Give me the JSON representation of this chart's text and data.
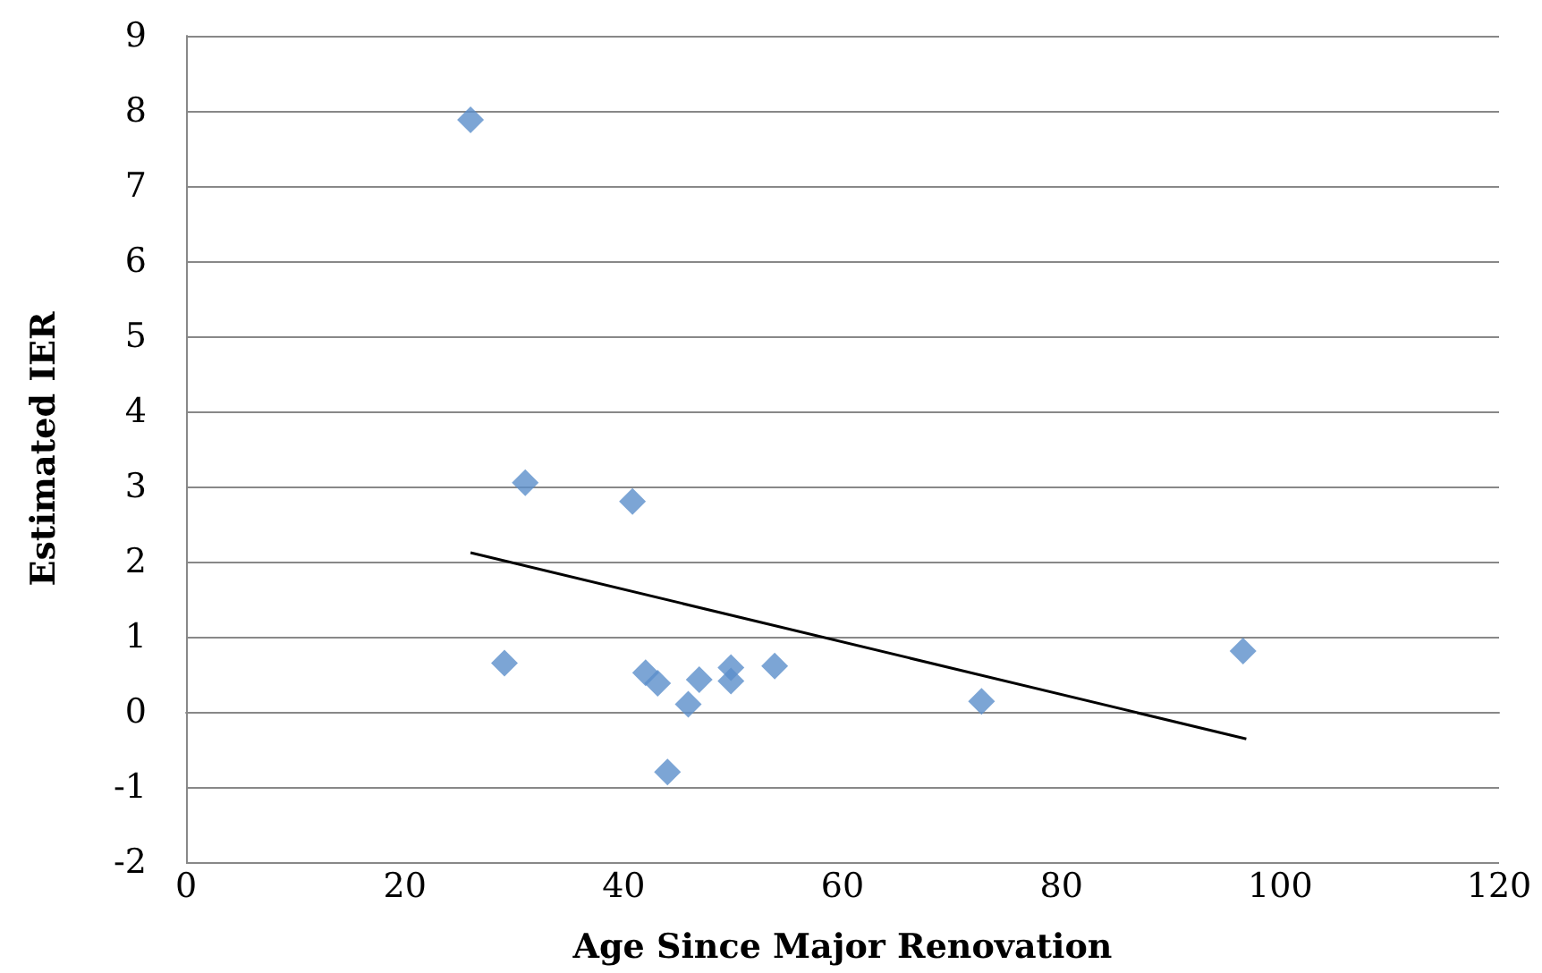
{
  "chart_data": {
    "type": "scatter",
    "xlabel": "Age Since Major Renovation",
    "ylabel": "Estimated IER",
    "xlim": [
      0,
      120
    ],
    "xticks": [
      0,
      20,
      40,
      60,
      80,
      100,
      120
    ],
    "ylim": [
      -2,
      9
    ],
    "yticks": [
      -2,
      -1,
      0,
      1,
      2,
      3,
      4,
      5,
      6,
      7,
      8,
      9
    ],
    "grid": "y",
    "marker": "diamond",
    "series": [
      {
        "color": "#5b8fcb",
        "x": [
          26,
          31,
          40.8,
          29.1,
          42,
          43.1,
          44,
          45.9,
          46.9,
          49.8,
          49.8,
          53.8,
          72.7,
          96.6
        ],
        "values": [
          7.88,
          3.05,
          2.8,
          0.65,
          0.52,
          0.38,
          -0.8,
          0.1,
          0.43,
          0.59,
          0.41,
          0.61,
          0.14,
          0.81
        ]
      },
      {
        "type": "line",
        "color": "#000000",
        "marker": "none",
        "x": [
          26,
          96.9
        ],
        "values": [
          2.12,
          -0.36
        ]
      }
    ]
  }
}
